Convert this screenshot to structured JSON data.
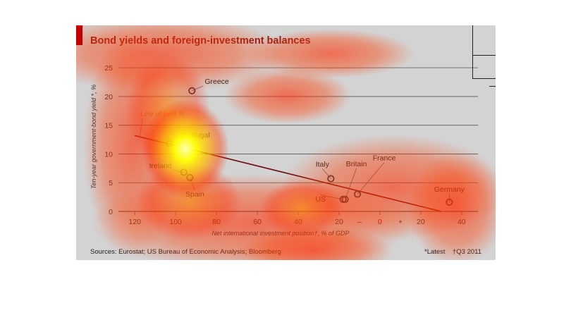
{
  "chart_data": {
    "type": "scatter",
    "title": "Bond yields and foreign-investment balances",
    "ylabel": "Ten-year government-bond yield",
    "ylabel_marks": "*, %",
    "xlabel": "Net international investment position",
    "xlabel_marks": "†, % of GDP",
    "x_ticks": [
      "120",
      "100",
      "80",
      "60",
      "40",
      "20",
      "–",
      "0",
      "+",
      "20",
      "40"
    ],
    "x_tick_values": [
      -120,
      -100,
      -80,
      -60,
      -40,
      -20,
      -10,
      0,
      10,
      20,
      40
    ],
    "y_ticks": [
      "0",
      "5",
      "10",
      "15",
      "20",
      "25"
    ],
    "y_tick_values": [
      0,
      5,
      10,
      15,
      20,
      25
    ],
    "xlim": [
      -128,
      48
    ],
    "ylim": [
      0,
      26
    ],
    "grid": true,
    "points": [
      {
        "label": "Greece",
        "x": -92,
        "y": 21
      },
      {
        "label": "Portugal",
        "x": -103,
        "y": 11.8
      },
      {
        "label": "Ireland",
        "x": -96,
        "y": 6.8
      },
      {
        "label": "Spain",
        "x": -93,
        "y": 5.9
      },
      {
        "label": "Italy",
        "x": -24,
        "y": 5.7
      },
      {
        "label": "Britain",
        "x": -17,
        "y": 2.1
      },
      {
        "label": "US",
        "x": -18,
        "y": 2.1
      },
      {
        "label": "France",
        "x": -11,
        "y": 3.0
      },
      {
        "label": "Germany",
        "x": 34,
        "y": 1.6
      }
    ],
    "best_fit": {
      "label": "Line of best fit",
      "x": [
        -120,
        30
      ],
      "y": [
        13.2,
        0
      ]
    },
    "sources": "Sources: Eurostat; US Bureau of Economic Analysis; Bloomberg",
    "footnote_latest": "*Latest",
    "footnote_q3": "†Q3 2011",
    "colors": {
      "panel": "#d3d3d3",
      "grid": "#555555",
      "line": "#6b0f0f",
      "title": "#8b1a1a",
      "accent": "#c00000",
      "point_stroke": "#2b3a4a",
      "best_fit_label": "#c07a2a"
    }
  }
}
